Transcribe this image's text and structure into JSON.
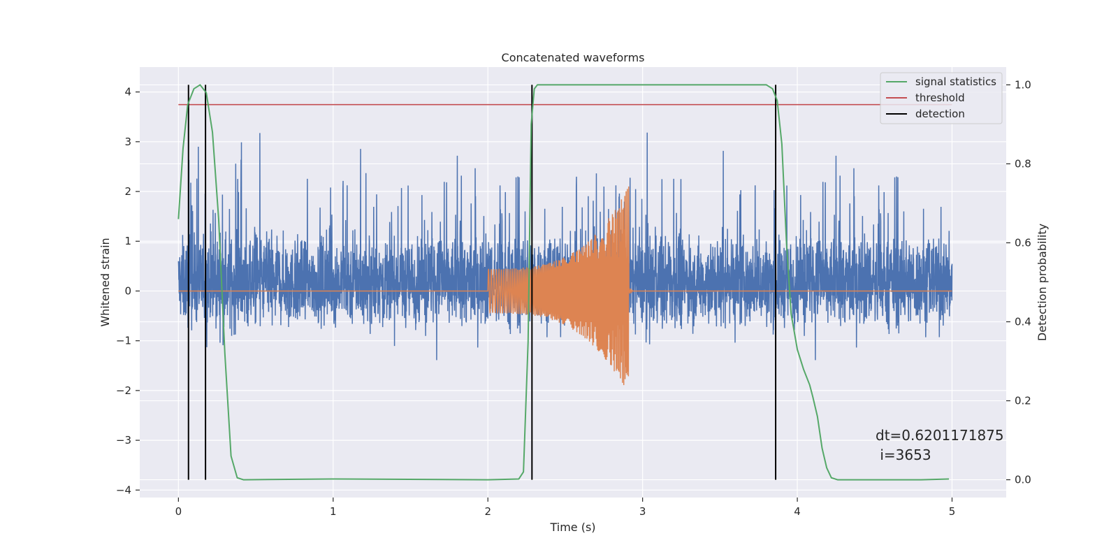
{
  "chart_data": {
    "type": "line",
    "title": "Concatenated waveforms",
    "xlabel": "Time (s)",
    "ylabel_left": "Whitened strain",
    "ylabel_right": "Detection probability",
    "xlim": [
      -0.25,
      5.35
    ],
    "ylim_left": [
      -4.15,
      4.5
    ],
    "ylim_right": [
      -0.045,
      1.045
    ],
    "xticks": [
      0,
      1,
      2,
      3,
      4,
      5
    ],
    "xtick_labels": [
      "0",
      "1",
      "2",
      "3",
      "4",
      "5"
    ],
    "yticks_left": [
      -4,
      -3,
      -2,
      -1,
      0,
      1,
      2,
      3,
      4
    ],
    "ytick_labels_left": [
      "−4",
      "−3",
      "−2",
      "−1",
      "0",
      "1",
      "2",
      "3",
      "4"
    ],
    "yticks_right": [
      0.0,
      0.2,
      0.4,
      0.6,
      0.8,
      1.0
    ],
    "ytick_labels_right": [
      "0.0",
      "0.2",
      "0.4",
      "0.6",
      "0.8",
      "1.0"
    ],
    "grid": true,
    "legend_position": "top-right",
    "series": [
      {
        "id": "strain",
        "axis": "left",
        "color": "#4c72b0",
        "kind": "noise",
        "x_range": [
          0,
          5
        ],
        "amplitude_envelope": 2.2
      },
      {
        "id": "injected",
        "axis": "left",
        "color": "#dd8452",
        "kind": "chirp",
        "x_range": [
          2.0,
          2.91
        ],
        "amp_start": 0.45,
        "amp_end": 2.1
      },
      {
        "id": "signal_statistics",
        "name": "signal statistics",
        "axis": "right",
        "color": "#55a868",
        "points": [
          [
            0,
            0.66
          ],
          [
            0.03,
            0.84
          ],
          [
            0.06,
            0.95
          ],
          [
            0.1,
            0.99
          ],
          [
            0.14,
            1.0
          ],
          [
            0.18,
            0.98
          ],
          [
            0.22,
            0.88
          ],
          [
            0.26,
            0.66
          ],
          [
            0.3,
            0.32
          ],
          [
            0.34,
            0.06
          ],
          [
            0.38,
            0.005
          ],
          [
            0.42,
            0.0
          ],
          [
            1.0,
            0.002
          ],
          [
            2.0,
            0.0
          ],
          [
            2.2,
            0.002
          ],
          [
            2.23,
            0.02
          ],
          [
            2.26,
            0.35
          ],
          [
            2.28,
            0.9
          ],
          [
            2.3,
            0.99
          ],
          [
            2.32,
            1.0
          ],
          [
            3.8,
            1.0
          ],
          [
            3.84,
            0.99
          ],
          [
            3.87,
            0.96
          ],
          [
            3.9,
            0.85
          ],
          [
            3.93,
            0.6
          ],
          [
            3.96,
            0.42
          ],
          [
            4.0,
            0.33
          ],
          [
            4.04,
            0.28
          ],
          [
            4.08,
            0.24
          ],
          [
            4.1,
            0.21
          ],
          [
            4.13,
            0.16
          ],
          [
            4.16,
            0.08
          ],
          [
            4.19,
            0.03
          ],
          [
            4.22,
            0.005
          ],
          [
            4.26,
            0.0
          ],
          [
            4.8,
            0.0
          ],
          [
            4.9,
            0.001
          ],
          [
            4.98,
            0.002
          ]
        ]
      },
      {
        "id": "threshold",
        "name": "threshold",
        "axis": "right",
        "color": "#c44e52",
        "points": [
          [
            0,
            0.95
          ],
          [
            5,
            0.95
          ]
        ]
      }
    ],
    "detections": {
      "name": "detection",
      "color": "#000000",
      "x": [
        0.065,
        0.175,
        2.285,
        3.86
      ],
      "y_range_right": [
        0.0,
        1.0
      ]
    },
    "annotation": {
      "line1": "dt=0.6201171875",
      "line2": " i=3653",
      "x": 4.5,
      "y_right": 0.11
    }
  }
}
